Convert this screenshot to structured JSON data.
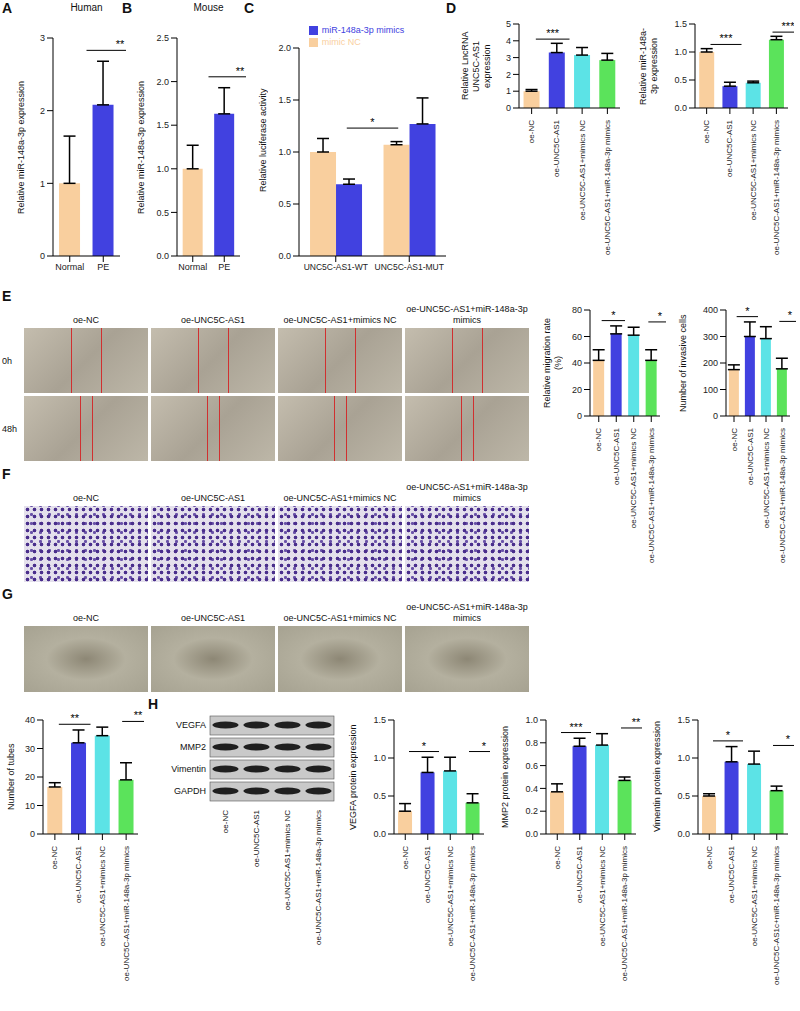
{
  "chart_data": [
    {
      "panel": "A",
      "type": "bar",
      "title": "Human",
      "y_label": "Relative miR-148a-3p expression",
      "categories": [
        "Normal",
        "PE"
      ],
      "values": [
        1.0,
        2.08
      ],
      "errors": [
        0.65,
        0.6
      ],
      "colors": [
        "#F9CF9E",
        "#4141E0"
      ],
      "ylim": [
        0,
        3
      ],
      "yticks": [
        0,
        1,
        2,
        3
      ],
      "annotations": [
        {
          "text": "**",
          "between": [
            "Normal",
            "PE"
          ]
        }
      ]
    },
    {
      "panel": "B",
      "type": "bar",
      "title": "Mouse",
      "y_label": "Relative miR-148a-3p expression",
      "categories": [
        "Normal",
        "PE"
      ],
      "values": [
        1.0,
        1.63
      ],
      "errors": [
        0.27,
        0.3
      ],
      "colors": [
        "#F9CF9E",
        "#4141E0"
      ],
      "ylim": [
        0,
        2.5
      ],
      "yticks": [
        {
          "value": 0,
          "label": "0.0"
        },
        0.5,
        {
          "value": 1,
          "label": "1.0"
        },
        1.5,
        {
          "value": 2,
          "label": "2.0"
        },
        2.5
      ],
      "annotations": [
        {
          "text": "**",
          "between": [
            "Normal",
            "PE"
          ]
        }
      ]
    },
    {
      "panel": "C",
      "type": "bar",
      "y_label": "Relative luciferase activity",
      "categories": [
        "UNC5C-AS1-WT",
        "UNC5C-AS1-MUT"
      ],
      "series": [
        {
          "name": "mimic NC",
          "color": "#F9CF9E",
          "values": [
            1.0,
            1.07
          ],
          "errors": [
            0.13,
            0.03
          ]
        },
        {
          "name": "miR-148a-3p mimics",
          "color": "#4141E0",
          "values": [
            0.69,
            1.27
          ],
          "errors": [
            0.05,
            0.25
          ]
        }
      ],
      "legend": "top",
      "ylim": [
        0,
        2
      ],
      "yticks": [
        {
          "value": 0,
          "label": "0.0"
        },
        0.5,
        {
          "value": 1,
          "label": "1.0"
        },
        1.5,
        {
          "value": 2,
          "label": "2.0"
        }
      ],
      "annotations": [
        {
          "text": "*",
          "category": "UNC5C-AS1-WT",
          "between": [
            "mimic NC",
            "miR-148a-3p mimics"
          ]
        }
      ]
    },
    {
      "panel": "D",
      "type": "bar",
      "y_label": "Relative LncRNA UNC5C-AS1 expression",
      "categories": [
        "oe-NC",
        "oe-UNC5C-AS1",
        "oe-UNC5C-AS1+mimics NC",
        "oe-UNC5C-AS1+miR-148a-3p mimics"
      ],
      "values": [
        1.0,
        3.3,
        3.15,
        2.85
      ],
      "errors": [
        0.1,
        0.55,
        0.45,
        0.4
      ],
      "colors": [
        "#F9CF9E",
        "#4141E0",
        "#5CE3E6",
        "#5BE35B"
      ],
      "ylim": [
        0,
        5
      ],
      "yticks": [
        0,
        1,
        2,
        3,
        4,
        5
      ],
      "annotations": [
        {
          "text": "***",
          "between": [
            "oe-NC",
            "oe-UNC5C-AS1"
          ]
        }
      ]
    },
    {
      "type": "bar",
      "y_label": "Relative miR-148a-3p expression",
      "categories": [
        "oe-NC",
        "oe-UNC5C-AS1",
        "oe-UNC5C-AS1+mimics NC",
        "oe-UNC5C-AS1+miR-148a-3p mimics"
      ],
      "values": [
        1.0,
        0.39,
        0.45,
        1.22
      ],
      "errors": [
        0.06,
        0.07,
        0.03,
        0.06
      ],
      "colors": [
        "#F9CF9E",
        "#4141E0",
        "#5CE3E6",
        "#5BE35B"
      ],
      "ylim": [
        0,
        1.5
      ],
      "yticks": [
        {
          "value": 0,
          "label": "0.0"
        },
        0.5,
        {
          "value": 1,
          "label": "1.0"
        },
        1.5
      ],
      "annotations": [
        {
          "text": "***",
          "between": [
            "oe-NC",
            "oe-UNC5C-AS1"
          ]
        },
        {
          "text": "***",
          "between": [
            "oe-UNC5C-AS1+mimics NC",
            "oe-UNC5C-AS1+miR-148a-3p mimics"
          ]
        }
      ]
    },
    {
      "type": "bar",
      "y_label": "Relative migration rate (%)",
      "categories": [
        "oe-NC",
        "oe-UNC5C-AS1",
        "oe-UNC5C-AS1+mimics NC",
        "oe-UNC5C-AS1+miR-148a-3p mimics"
      ],
      "values": [
        42,
        62,
        61,
        42
      ],
      "errors": [
        8,
        6,
        6,
        8
      ],
      "colors": [
        "#F9CF9E",
        "#4141E0",
        "#5CE3E6",
        "#5BE35B"
      ],
      "ylim": [
        0,
        80
      ],
      "yticks": [
        0,
        20,
        40,
        60,
        80
      ],
      "annotations": [
        {
          "text": "*",
          "between": [
            "oe-NC",
            "oe-UNC5C-AS1"
          ]
        },
        {
          "text": "*",
          "between": [
            "oe-UNC5C-AS1+mimics NC",
            "oe-UNC5C-AS1+miR-148a-3p mimics"
          ]
        }
      ]
    },
    {
      "type": "bar",
      "y_label": "Number of invasive cells",
      "categories": [
        "oe-NC",
        "oe-UNC5C-AS1",
        "oe-UNC5C-AS1+mimics NC",
        "oe-UNC5C-AS1+miR-148a-3p mimics"
      ],
      "values": [
        175,
        300,
        292,
        178
      ],
      "errors": [
        18,
        55,
        45,
        40
      ],
      "colors": [
        "#F9CF9E",
        "#4141E0",
        "#5CE3E6",
        "#5BE35B"
      ],
      "ylim": [
        0,
        400
      ],
      "yticks": [
        0,
        100,
        200,
        300,
        400
      ],
      "annotations": [
        {
          "text": "*",
          "between": [
            "oe-NC",
            "oe-UNC5C-AS1"
          ]
        },
        {
          "text": "*",
          "between": [
            "oe-UNC5C-AS1+mimics NC",
            "oe-UNC5C-AS1+miR-148a-3p mimics"
          ]
        }
      ]
    },
    {
      "type": "bar",
      "y_label": "Number of tubes",
      "categories": [
        "oe-NC",
        "oe-UNC5C-AS1",
        "oe-UNC5C-AS1+mimics NC",
        "oe-UNC5C-AS1+miR-148a-3p mimics"
      ],
      "values": [
        16.5,
        32,
        34.5,
        19
      ],
      "errors": [
        1.5,
        4.5,
        3,
        6
      ],
      "colors": [
        "#F9CF9E",
        "#4141E0",
        "#5CE3E6",
        "#5BE35B"
      ],
      "ylim": [
        0,
        40
      ],
      "yticks": [
        0,
        10,
        20,
        30,
        40
      ],
      "annotations": [
        {
          "text": "**",
          "between": [
            "oe-NC",
            "oe-UNC5C-AS1"
          ]
        },
        {
          "text": "**",
          "between": [
            "oe-UNC5C-AS1+mimics NC",
            "oe-UNC5C-AS1+miR-148a-3p mimics"
          ]
        }
      ]
    },
    {
      "type": "bar",
      "y_label": "VEGFA protein expression",
      "categories": [
        "oe-NC",
        "oe-UNC5C-AS1",
        "oe-UNC5C-AS1+mimics NC",
        "oe-UNC5C-AS1+miR-148a-3p mimics"
      ],
      "values": [
        0.3,
        0.81,
        0.83,
        0.41
      ],
      "errors": [
        0.1,
        0.2,
        0.18,
        0.12
      ],
      "colors": [
        "#F9CF9E",
        "#4141E0",
        "#5CE3E6",
        "#5BE35B"
      ],
      "ylim": [
        0,
        1.5
      ],
      "yticks": [
        {
          "value": 0,
          "label": "0.0"
        },
        0.5,
        {
          "value": 1,
          "label": "1.0"
        },
        1.5
      ],
      "annotations": [
        {
          "text": "*",
          "between": [
            "oe-NC",
            "oe-UNC5C-AS1"
          ]
        },
        {
          "text": "*",
          "between": [
            "oe-UNC5C-AS1+mimics NC",
            "oe-UNC5C-AS1+miR-148a-3p mimics"
          ]
        }
      ]
    },
    {
      "type": "bar",
      "y_label": "MMP2 protein expression",
      "categories": [
        "oe-NC",
        "oe-UNC5C-AS1",
        "oe-UNC5C-AS1+mimics NC",
        "oe-UNC5C-AS1+miR-148a-3p mimics"
      ],
      "values": [
        0.37,
        0.77,
        0.78,
        0.47
      ],
      "errors": [
        0.07,
        0.07,
        0.1,
        0.03
      ],
      "colors": [
        "#F9CF9E",
        "#4141E0",
        "#5CE3E6",
        "#5BE35B"
      ],
      "ylim": [
        0,
        1
      ],
      "yticks": [
        {
          "value": 0,
          "label": "0.0"
        },
        0.2,
        0.4,
        0.6,
        0.8,
        {
          "value": 1,
          "label": "1.0"
        }
      ],
      "annotations": [
        {
          "text": "***",
          "between": [
            "oe-NC",
            "oe-UNC5C-AS1"
          ]
        },
        {
          "text": "**",
          "between": [
            "oe-UNC5C-AS1+mimics NC",
            "oe-UNC5C-AS1+miR-148a-3p mimics"
          ]
        }
      ]
    },
    {
      "type": "bar",
      "y_label": "Vimentin protein expression",
      "categories": [
        "oe-NC",
        "oe-UNC5C-AS1",
        "oe-UNC5C-AS1+mimics NC",
        "oe-UNC5C-AS1c+miR-148a-3p mimics"
      ],
      "values": [
        0.5,
        0.95,
        0.92,
        0.57
      ],
      "errors": [
        0.03,
        0.2,
        0.17,
        0.06
      ],
      "colors": [
        "#F9CF9E",
        "#4141E0",
        "#5CE3E6",
        "#5BE35B"
      ],
      "ylim": [
        0,
        1.5
      ],
      "yticks": [
        {
          "value": 0,
          "label": "0.0"
        },
        0.5,
        {
          "value": 1,
          "label": "1.0"
        },
        1.5
      ],
      "annotations": [
        {
          "text": "*",
          "between": [
            "oe-NC",
            "oe-UNC5C-AS1"
          ]
        },
        {
          "text": "*",
          "between": [
            "oe-UNC5C-AS1+mimics NC",
            "oe-UNC5C-AS1c+miR-148a-3p mimics"
          ]
        }
      ]
    }
  ],
  "images": [
    {
      "panel": "E",
      "columns": [
        "oe-NC",
        "oe-UNC5C-AS1",
        "oe-UNC5C-AS1+mimics NC",
        "oe-UNC5C-AS1+miR-148a-3p mimics"
      ],
      "rows": [
        "0h",
        "48h"
      ]
    },
    {
      "panel": "F",
      "columns": [
        "oe-NC",
        "oe-UNC5C-AS1",
        "oe-UNC5C-AS1+mimics NC",
        "oe-UNC5C-AS1+miR-148a-3p mimics"
      ]
    },
    {
      "panel": "G",
      "columns": [
        "oe-NC",
        "oe-UNC5C-AS1",
        "oe-UNC5C-AS1+mimics NC",
        "oe-UNC5C-AS1+miR-148a-3p mimics"
      ]
    },
    {
      "panel": "H",
      "rows": [
        "VEGFA",
        "MMP2",
        "Vimentin",
        "GAPDH"
      ],
      "columns": [
        "oe-NC",
        "oe-UNC5C-AS1",
        "oe-UNC5C-AS1+mimics NC",
        "oe-UNC5C-AS1+miR-148a-3p mimics"
      ]
    }
  ]
}
